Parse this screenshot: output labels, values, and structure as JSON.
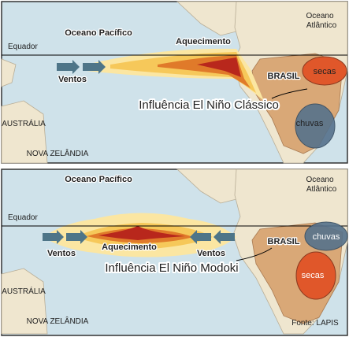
{
  "panels": [
    {
      "pacific": "Oceano Pacífico",
      "atlantic": [
        "Oceano",
        "Atlântico"
      ],
      "equator": "Equador",
      "warming": "Aquecimento",
      "winds": [
        "Ventos"
      ],
      "country": "BRASIL",
      "regions": [
        "secas",
        "chuvas"
      ],
      "caption": "Influência El Niño Clássico",
      "australia": "AUSTRÁLIA",
      "new_zealand": "NOVA ZELÂNDIA"
    },
    {
      "pacific": "Oceano Pacífico",
      "atlantic": [
        "Oceano",
        "Atlântico"
      ],
      "equator": "Equador",
      "warming": "Aquecimento",
      "winds": [
        "Ventos",
        "Ventos"
      ],
      "country": "BRASIL",
      "regions": [
        "chuvas",
        "secas"
      ],
      "caption": "Influência El Niño Modoki",
      "australia": "AUSTRÁLIA",
      "new_zealand": "NOVA ZELÂNDIA",
      "source": "Fonte: LAPIS"
    }
  ]
}
